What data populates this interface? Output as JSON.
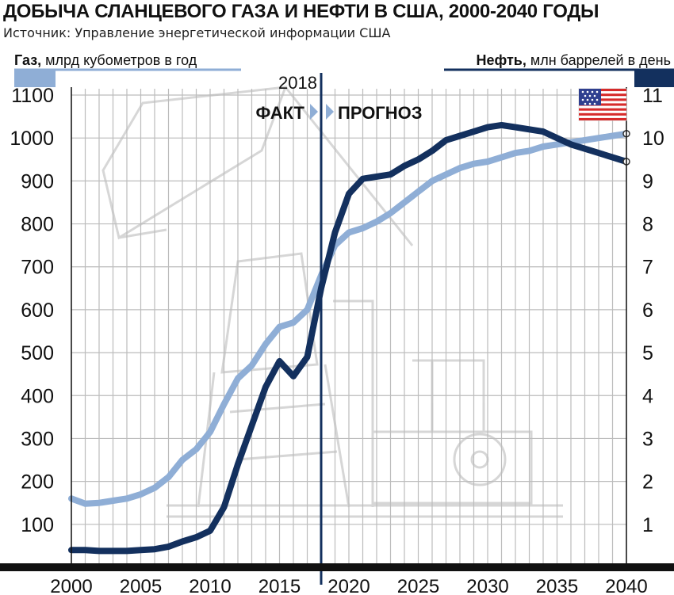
{
  "title": "ДОБЫЧА СЛАНЦЕВОГО ГАЗА И НЕФТИ В США, 2000-2040 ГОДЫ",
  "subtitle": "Источник: Управление энергетической информации США",
  "left_axis_label": {
    "bold": "Газ,",
    "rest": " млрд кубометров в год"
  },
  "right_axis_label": {
    "bold": "Нефть,",
    "rest": " млн баррелей в день"
  },
  "divider_year": "2018",
  "label_fact": "ФАКТ",
  "label_forecast": "ПРОГНОЗ",
  "colors": {
    "gas": "#8faed6",
    "oil": "#13305e",
    "grid": "#bcbcbc",
    "axis": "#111111"
  },
  "chart_data": {
    "type": "line",
    "x_ticks": [
      "2000",
      "2005",
      "2010",
      "2015",
      "2020",
      "2025",
      "2030",
      "2035",
      "2040"
    ],
    "y_left_ticks": [
      "100",
      "200",
      "300",
      "400",
      "500",
      "600",
      "700",
      "800",
      "900",
      "1000",
      "1100"
    ],
    "y_right_ticks": [
      "1",
      "2",
      "3",
      "4",
      "5",
      "6",
      "7",
      "8",
      "9",
      "10",
      "11"
    ],
    "xlim": [
      2000,
      2040
    ],
    "ylim_left": [
      0,
      1100
    ],
    "ylim_right": [
      0,
      11
    ],
    "grid": true,
    "series": [
      {
        "name": "Газ, млрд кубометров в год",
        "axis": "left",
        "points": [
          [
            2000,
            160
          ],
          [
            2001,
            148
          ],
          [
            2002,
            150
          ],
          [
            2003,
            155
          ],
          [
            2004,
            160
          ],
          [
            2005,
            170
          ],
          [
            2006,
            185
          ],
          [
            2007,
            210
          ],
          [
            2008,
            250
          ],
          [
            2009,
            275
          ],
          [
            2010,
            315
          ],
          [
            2011,
            380
          ],
          [
            2012,
            440
          ],
          [
            2013,
            470
          ],
          [
            2014,
            520
          ],
          [
            2015,
            560
          ],
          [
            2016,
            570
          ],
          [
            2017,
            600
          ],
          [
            2018,
            680
          ],
          [
            2019,
            750
          ],
          [
            2020,
            780
          ],
          [
            2021,
            790
          ],
          [
            2022,
            805
          ],
          [
            2023,
            825
          ],
          [
            2024,
            850
          ],
          [
            2025,
            875
          ],
          [
            2026,
            900
          ],
          [
            2027,
            915
          ],
          [
            2028,
            930
          ],
          [
            2029,
            940
          ],
          [
            2030,
            945
          ],
          [
            2031,
            955
          ],
          [
            2032,
            965
          ],
          [
            2033,
            970
          ],
          [
            2034,
            980
          ],
          [
            2035,
            985
          ],
          [
            2036,
            990
          ],
          [
            2037,
            995
          ],
          [
            2038,
            1000
          ],
          [
            2039,
            1005
          ],
          [
            2040,
            1010
          ]
        ]
      },
      {
        "name": "Нефть, млн баррелей в день",
        "axis": "right",
        "points": [
          [
            2000,
            0.4
          ],
          [
            2001,
            0.4
          ],
          [
            2002,
            0.38
          ],
          [
            2003,
            0.38
          ],
          [
            2004,
            0.38
          ],
          [
            2005,
            0.4
          ],
          [
            2006,
            0.42
          ],
          [
            2007,
            0.48
          ],
          [
            2008,
            0.6
          ],
          [
            2009,
            0.7
          ],
          [
            2010,
            0.85
          ],
          [
            2011,
            1.4
          ],
          [
            2012,
            2.4
          ],
          [
            2013,
            3.3
          ],
          [
            2014,
            4.2
          ],
          [
            2015,
            4.8
          ],
          [
            2016,
            4.45
          ],
          [
            2017,
            4.9
          ],
          [
            2018,
            6.5
          ],
          [
            2019,
            7.8
          ],
          [
            2020,
            8.7
          ],
          [
            2021,
            9.05
          ],
          [
            2022,
            9.1
          ],
          [
            2023,
            9.15
          ],
          [
            2024,
            9.35
          ],
          [
            2025,
            9.5
          ],
          [
            2026,
            9.7
          ],
          [
            2027,
            9.95
          ],
          [
            2028,
            10.05
          ],
          [
            2029,
            10.15
          ],
          [
            2030,
            10.25
          ],
          [
            2031,
            10.3
          ],
          [
            2032,
            10.25
          ],
          [
            2033,
            10.2
          ],
          [
            2034,
            10.15
          ],
          [
            2035,
            10.0
          ],
          [
            2036,
            9.85
          ],
          [
            2037,
            9.75
          ],
          [
            2038,
            9.65
          ],
          [
            2039,
            9.55
          ],
          [
            2040,
            9.45
          ]
        ]
      }
    ]
  }
}
